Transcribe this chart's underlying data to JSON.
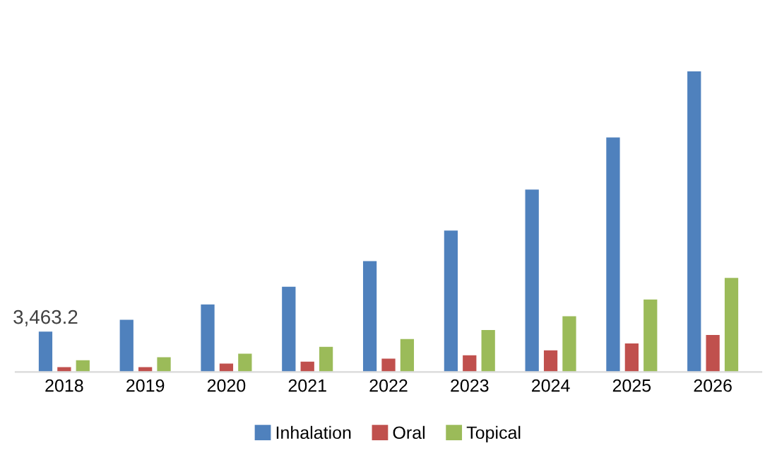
{
  "chart_data": {
    "type": "bar",
    "categories": [
      "2018",
      "2019",
      "2020",
      "2021",
      "2022",
      "2023",
      "2024",
      "2025",
      "2026"
    ],
    "series": [
      {
        "name": "Inhalation",
        "color": "#4f81bd",
        "values": [
          3463.2,
          4465,
          5759,
          7261,
          9431,
          12018,
          15481,
          19905,
          25497
        ],
        "value_labels": [
          "3,463.2",
          null,
          null,
          null,
          null,
          null,
          null,
          null,
          null
        ]
      },
      {
        "name": "Oral",
        "color": "#c0504d",
        "values": [
          459,
          459,
          751,
          918,
          1168,
          1461,
          1878,
          2462,
          3171
        ]
      },
      {
        "name": "Topical",
        "color": "#9bbb59",
        "values": [
          1043,
          1294,
          1586,
          2170,
          2838,
          3589,
          4757,
          6176,
          8012
        ]
      }
    ],
    "tick_labels": "x",
    "grid": false,
    "legend": "bottom"
  }
}
